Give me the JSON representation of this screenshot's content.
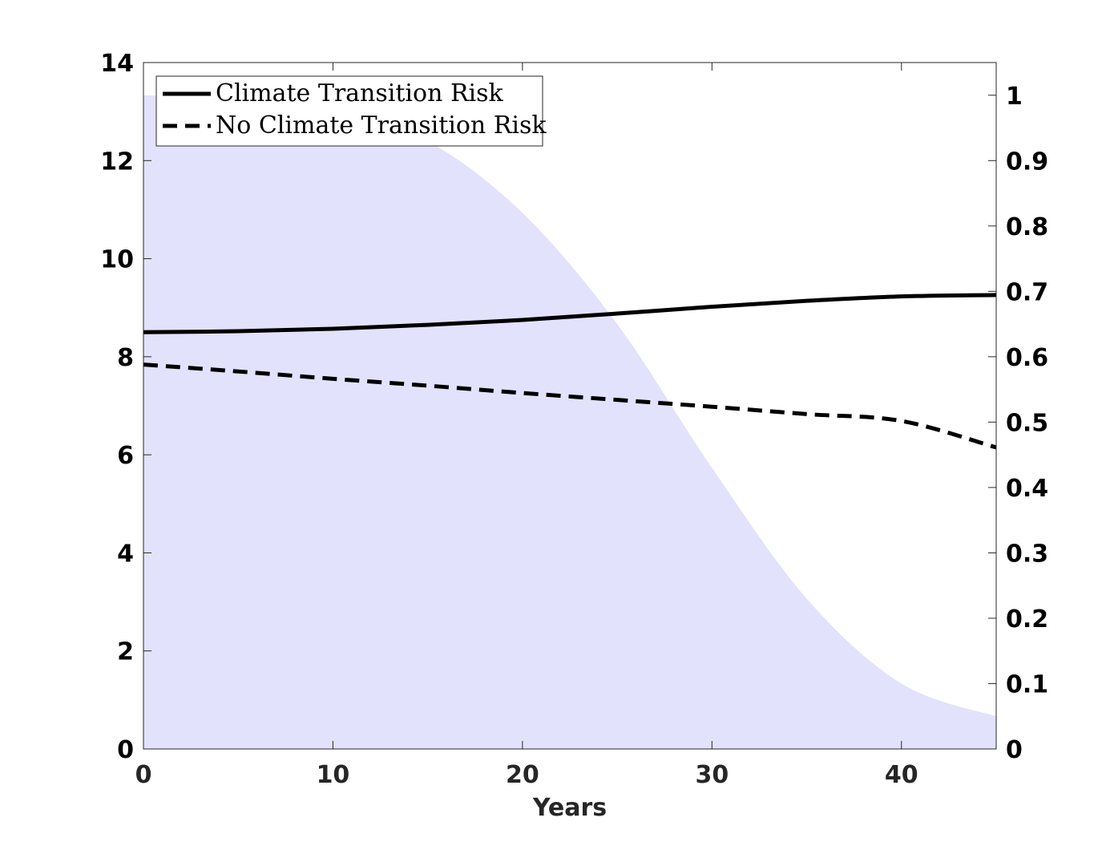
{
  "chart_data": {
    "type": "line",
    "title": "",
    "xlabel": "Years",
    "ylabel": "",
    "y2label": "",
    "xlim": [
      0,
      45
    ],
    "ylim": [
      0,
      14
    ],
    "y2lim": [
      0,
      1.05
    ],
    "xticks": [
      0,
      10,
      20,
      30,
      40
    ],
    "yticks": [
      0,
      2,
      4,
      6,
      8,
      10,
      12,
      14
    ],
    "y2ticks": [
      0,
      0.1,
      0.2,
      0.3,
      0.4,
      0.5,
      0.6,
      0.7,
      0.8,
      0.9,
      1
    ],
    "grid": false,
    "legend_location": "top-left",
    "series": [
      {
        "name": "Climate Transition Risk",
        "axis": "left",
        "style": "solid",
        "color": "#000000",
        "x": [
          0,
          5,
          10,
          15,
          20,
          25,
          30,
          35,
          40,
          45
        ],
        "values": [
          8.5,
          8.52,
          8.57,
          8.65,
          8.75,
          8.88,
          9.02,
          9.14,
          9.23,
          9.26
        ]
      },
      {
        "name": "No Climate Transition Risk",
        "axis": "left",
        "style": "dashed",
        "color": "#000000",
        "x": [
          0,
          5,
          10,
          15,
          20,
          25,
          30,
          35,
          40,
          45
        ],
        "values": [
          7.84,
          7.7,
          7.55,
          7.41,
          7.26,
          7.12,
          6.98,
          6.83,
          6.69,
          6.15
        ]
      },
      {
        "name": "",
        "axis": "right",
        "style": "area",
        "color": "#e2e2fd",
        "x": [
          0,
          5,
          10,
          15,
          20,
          25,
          30,
          35,
          40,
          45
        ],
        "values": [
          1.0,
          0.995,
          0.98,
          0.93,
          0.82,
          0.65,
          0.43,
          0.23,
          0.1,
          0.05
        ]
      }
    ]
  }
}
